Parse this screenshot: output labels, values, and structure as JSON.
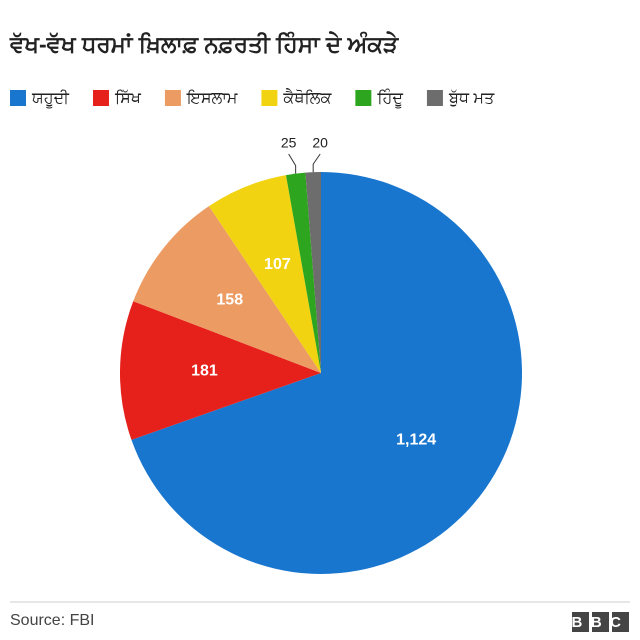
{
  "chart_data": {
    "type": "pie",
    "title": "ਵੱਖ-ਵੱਖ ਧਰਮਾਂ ਖ਼ਿਲਾਫ਼ ਨਫ਼ਰਤੀ ਹਿੰਸਾ ਦੇ ਅੰਕੜੇ",
    "categories": [
      "ਯਹੂਦੀ",
      "ਸਿੱਖ",
      "ਇਸਲਾਮ",
      "ਕੈਥੋਲਿਕ",
      "ਹਿੰਦੂ",
      "ਬੁੱਧ ਮਤ"
    ],
    "values": [
      1124,
      181,
      158,
      107,
      25,
      20
    ],
    "value_labels": [
      "1,124",
      "181",
      "158",
      "107",
      "25",
      "20"
    ],
    "colors": [
      "#1976cf",
      "#e6201a",
      "#ec9b62",
      "#f2d311",
      "#2ea51f",
      "#6d6d6d"
    ],
    "source": "Source: FBI",
    "logo": "BBC"
  }
}
